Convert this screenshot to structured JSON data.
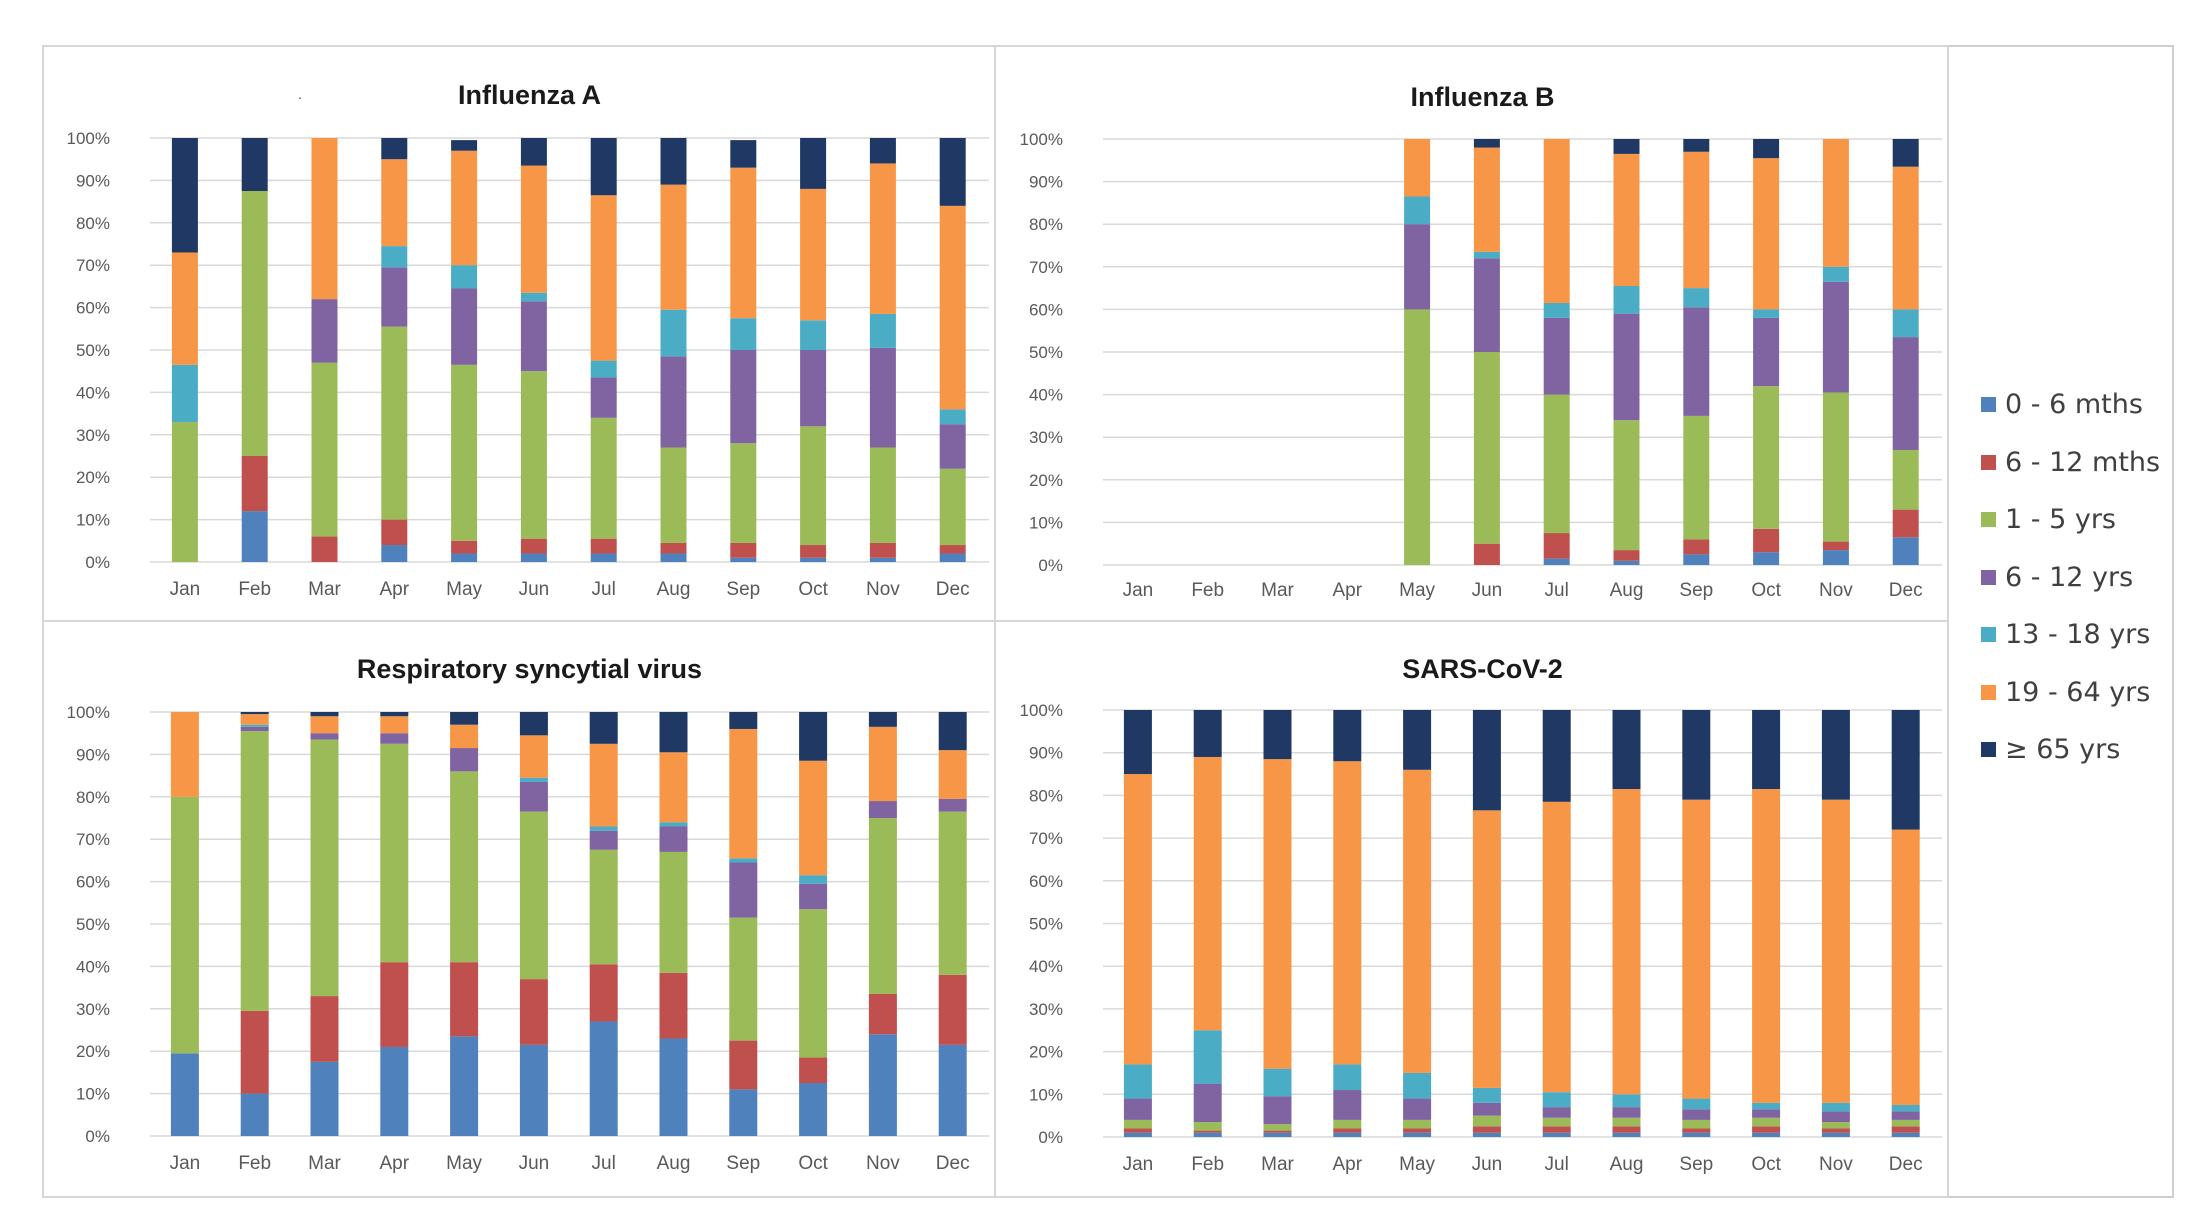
{
  "months": [
    "Jan",
    "Feb",
    "Mar",
    "Apr",
    "May",
    "Jun",
    "Jul",
    "Aug",
    "Sep",
    "Oct",
    "Nov",
    "Dec"
  ],
  "y_ticks": [
    "0%",
    "10%",
    "20%",
    "30%",
    "40%",
    "50%",
    "60%",
    "70%",
    "80%",
    "90%",
    "100%"
  ],
  "colors": {
    "0 - 6 mths": "#4f81bd",
    "6 - 12 mths": "#c0504d",
    "1 - 5 yrs": "#9bbb59",
    "6 - 12 yrs": "#8064a2",
    "13 - 18 yrs": "#4bacc6",
    "19 - 64 yrs": "#f79646",
    "≥ 65 yrs": "#1f3864"
  },
  "legend": [
    "0 - 6 mths",
    "6 - 12 mths",
    "1 - 5 yrs",
    "6 - 12 yrs",
    "13 - 18 yrs",
    "19 - 64 yrs",
    "≥ 65 yrs"
  ],
  "stray_mark": ".",
  "chart_data": [
    {
      "type": "bar",
      "stacked": true,
      "title": "Influenza A",
      "categories": [
        "Jan",
        "Feb",
        "Mar",
        "Apr",
        "May",
        "Jun",
        "Jul",
        "Aug",
        "Sep",
        "Oct",
        "Nov",
        "Dec"
      ],
      "ylim": [
        0,
        100
      ],
      "series": [
        {
          "name": "0 - 6 mths",
          "values": [
            0,
            12,
            0,
            4,
            2,
            2,
            2,
            2,
            1,
            1,
            1,
            2
          ]
        },
        {
          "name": "6 - 12 mths",
          "values": [
            0,
            13,
            6,
            6,
            3,
            3.5,
            3.5,
            2.5,
            3.5,
            3,
            3.5,
            2
          ]
        },
        {
          "name": "1 - 5 yrs",
          "values": [
            33,
            62.5,
            41,
            45.5,
            41.5,
            39.5,
            28.5,
            22.5,
            23.5,
            28,
            22.5,
            18
          ]
        },
        {
          "name": "6 - 12 yrs",
          "values": [
            0,
            0,
            15,
            14,
            18,
            16.5,
            9.5,
            21.5,
            22,
            18,
            23.5,
            10.5
          ]
        },
        {
          "name": "13 - 18 yrs",
          "values": [
            13.5,
            0,
            0,
            5,
            5.5,
            2,
            4,
            11,
            7.5,
            7,
            8,
            3.5
          ]
        },
        {
          "name": "19 - 64 yrs",
          "values": [
            26.5,
            0,
            38,
            20.5,
            27,
            30,
            39,
            29.5,
            35.5,
            31,
            35.5,
            48
          ]
        },
        {
          "name": "≥ 65 yrs",
          "values": [
            27,
            12.5,
            0,
            5,
            2.5,
            6.5,
            13.5,
            11,
            6.5,
            12,
            6,
            16
          ]
        }
      ]
    },
    {
      "type": "bar",
      "stacked": true,
      "title": "Influenza B",
      "categories": [
        "Jan",
        "Feb",
        "Mar",
        "Apr",
        "May",
        "Jun",
        "Jul",
        "Aug",
        "Sep",
        "Oct",
        "Nov",
        "Dec"
      ],
      "ylim": [
        0,
        100
      ],
      "series": [
        {
          "name": "0 - 6 mths",
          "values": [
            0,
            0,
            0,
            0,
            0,
            0,
            1.5,
            1,
            2.5,
            3,
            3.5,
            6.5
          ]
        },
        {
          "name": "6 - 12 mths",
          "values": [
            0,
            0,
            0,
            0,
            0,
            5,
            6,
            2.5,
            3.5,
            5.5,
            2,
            6.5
          ]
        },
        {
          "name": "1 - 5 yrs",
          "values": [
            0,
            0,
            0,
            0,
            60,
            45,
            32.5,
            30.5,
            29,
            33.5,
            35,
            14
          ]
        },
        {
          "name": "6 - 12 yrs",
          "values": [
            0,
            0,
            0,
            0,
            20,
            22,
            18,
            25,
            25.5,
            16,
            26,
            26.5
          ]
        },
        {
          "name": "13 - 18 yrs",
          "values": [
            0,
            0,
            0,
            0,
            6.5,
            1.5,
            3.5,
            6.5,
            4.5,
            2,
            3.5,
            6.5
          ]
        },
        {
          "name": "19 - 64 yrs",
          "values": [
            0,
            0,
            0,
            0,
            13.5,
            24.5,
            38.5,
            31,
            32,
            35.5,
            30,
            33.5
          ]
        },
        {
          "name": "≥ 65 yrs",
          "values": [
            0,
            0,
            0,
            0,
            0,
            2,
            0,
            3.5,
            3,
            4.5,
            0,
            6.5
          ]
        }
      ]
    },
    {
      "type": "bar",
      "stacked": true,
      "title": "Respiratory syncytial virus",
      "categories": [
        "Jan",
        "Feb",
        "Mar",
        "Apr",
        "May",
        "Jun",
        "Jul",
        "Aug",
        "Sep",
        "Oct",
        "Nov",
        "Dec"
      ],
      "ylim": [
        0,
        100
      ],
      "series": [
        {
          "name": "0 - 6 mths",
          "values": [
            19.5,
            10,
            17.5,
            21,
            23.5,
            21.5,
            27,
            23,
            11,
            12.5,
            24,
            21.5
          ]
        },
        {
          "name": "6 - 12 mths",
          "values": [
            0,
            19.5,
            15.5,
            20,
            17.5,
            15.5,
            13.5,
            15.5,
            11.5,
            6,
            9.5,
            16.5
          ]
        },
        {
          "name": "1 - 5 yrs",
          "values": [
            60.5,
            66,
            60.5,
            51.5,
            45,
            39.5,
            27,
            28.5,
            29,
            35,
            41.5,
            38.5
          ]
        },
        {
          "name": "6 - 12 yrs",
          "values": [
            0,
            1,
            1.5,
            2.5,
            5.5,
            7,
            4.5,
            6,
            13,
            6,
            4,
            3
          ]
        },
        {
          "name": "13 - 18 yrs",
          "values": [
            0,
            0.5,
            0,
            0,
            0,
            1,
            1,
            1,
            1,
            2,
            0,
            0
          ]
        },
        {
          "name": "19 - 64 yrs",
          "values": [
            20,
            2.5,
            4,
            4,
            5.5,
            10,
            19.5,
            16.5,
            30.5,
            27,
            17.5,
            11.5
          ]
        },
        {
          "name": "≥ 65 yrs",
          "values": [
            0,
            0.5,
            1,
            1,
            3,
            5.5,
            7.5,
            9.5,
            4,
            11.5,
            3.5,
            9
          ]
        }
      ]
    },
    {
      "type": "bar",
      "stacked": true,
      "title": "SARS-CoV-2",
      "categories": [
        "Jan",
        "Feb",
        "Mar",
        "Apr",
        "May",
        "Jun",
        "Jul",
        "Aug",
        "Sep",
        "Oct",
        "Nov",
        "Dec"
      ],
      "ylim": [
        0,
        100
      ],
      "series": [
        {
          "name": "0 - 6 mths",
          "values": [
            1,
            1,
            1,
            1,
            1,
            1,
            1,
            1,
            1,
            1,
            1,
            1
          ]
        },
        {
          "name": "6 - 12 mths",
          "values": [
            1,
            0.5,
            0.5,
            1,
            1,
            1.5,
            1.5,
            1.5,
            1,
            1.5,
            1,
            1.5
          ]
        },
        {
          "name": "1 - 5 yrs",
          "values": [
            2,
            2,
            1.5,
            2,
            2,
            2.5,
            2,
            2,
            2,
            2,
            1.5,
            1.5
          ]
        },
        {
          "name": "6 - 12 yrs",
          "values": [
            5,
            9,
            6.5,
            7,
            5,
            3,
            2.5,
            2.5,
            2.5,
            2,
            2.5,
            2
          ]
        },
        {
          "name": "13 - 18 yrs",
          "values": [
            8,
            12.5,
            6.5,
            6,
            6,
            3.5,
            3.5,
            3,
            2.5,
            1.5,
            2,
            1.5
          ]
        },
        {
          "name": "19 - 64 yrs",
          "values": [
            68,
            64,
            72.5,
            71,
            71,
            65,
            68,
            71.5,
            70,
            73.5,
            71,
            64.5
          ]
        },
        {
          "name": "≥ 65 yrs",
          "values": [
            15,
            11,
            11.5,
            12,
            14,
            23.5,
            21.5,
            18.5,
            21,
            18.5,
            21,
            28
          ]
        }
      ]
    }
  ]
}
